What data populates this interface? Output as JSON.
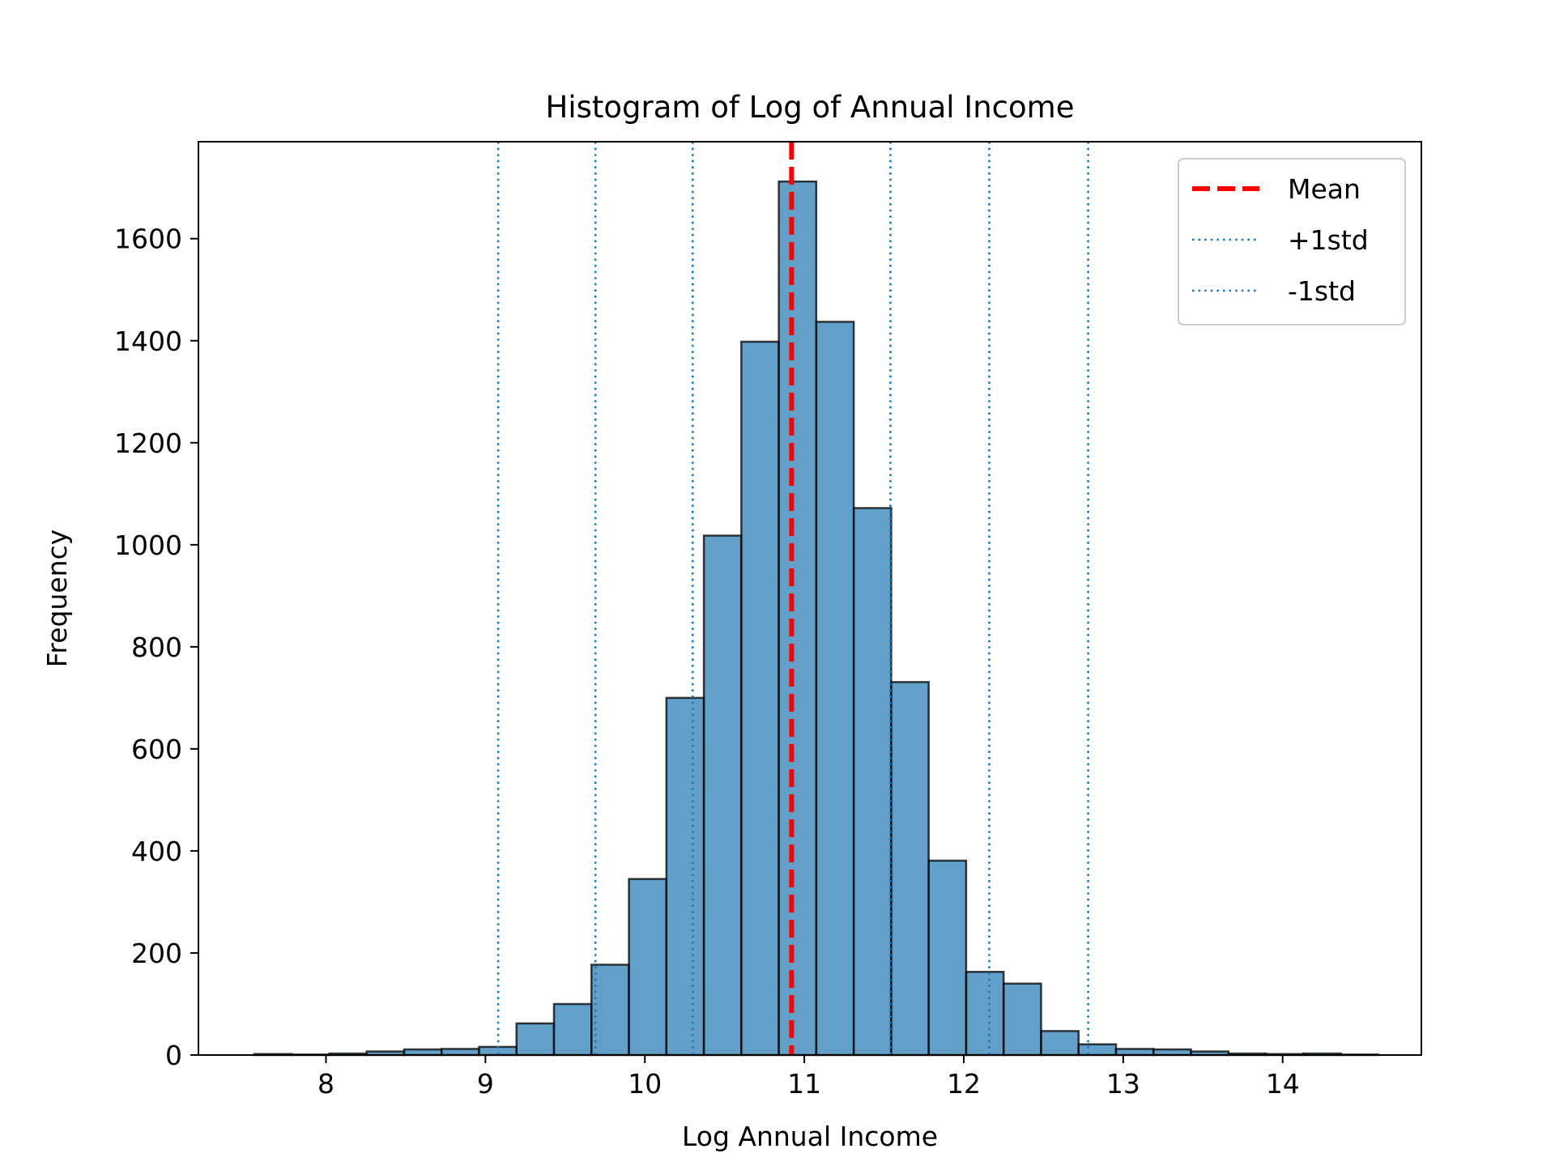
{
  "chart_data": {
    "type": "bar",
    "title": "Histogram of Log of Annual Income",
    "xlabel": "Log Annual Income",
    "ylabel": "Frequency",
    "xlim": [
      7.2,
      14.87
    ],
    "ylim": [
      0,
      1790
    ],
    "xticks": [
      8,
      9,
      10,
      11,
      12,
      13,
      14
    ],
    "yticks": [
      0,
      200,
      400,
      600,
      800,
      1000,
      1200,
      1400,
      1600
    ],
    "bin_edges": [
      7.55,
      7.785,
      8.02,
      8.255,
      8.49,
      8.725,
      8.96,
      9.195,
      9.43,
      9.665,
      9.9,
      10.135,
      10.37,
      10.605,
      10.84,
      11.075,
      11.31,
      11.545,
      11.78,
      12.015,
      12.25,
      12.485,
      12.72,
      12.955,
      13.19,
      13.425,
      13.66,
      13.895,
      14.13,
      14.365,
      14.6
    ],
    "values": [
      2,
      1,
      3,
      7,
      11,
      12,
      16,
      62,
      100,
      177,
      345,
      700,
      1018,
      1398,
      1712,
      1437,
      1072,
      731,
      381,
      163,
      140,
      47,
      21,
      12,
      11,
      7,
      3,
      2,
      3,
      1
    ],
    "vlines": [
      {
        "name": "Mean",
        "x": 10.92,
        "style": "dashed",
        "color": "#ff0000"
      },
      {
        "name": "+1std",
        "x": 11.54,
        "style": "dotted",
        "color": "#1f77b4"
      },
      {
        "name": "+1std",
        "x": 12.16,
        "style": "dotted",
        "color": "#1f77b4"
      },
      {
        "name": "+1std",
        "x": 12.78,
        "style": "dotted",
        "color": "#1f77b4"
      },
      {
        "name": "-1std",
        "x": 10.3,
        "style": "dotted",
        "color": "#1f77b4"
      },
      {
        "name": "-1std",
        "x": 9.69,
        "style": "dotted",
        "color": "#1f77b4"
      },
      {
        "name": "-1std",
        "x": 9.08,
        "style": "dotted",
        "color": "#1f77b4"
      }
    ],
    "legend": {
      "position": "upper right",
      "entries": [
        {
          "label": "Mean",
          "style": "dashed",
          "color": "#ff0000"
        },
        {
          "label": "+1std",
          "style": "dotted",
          "color": "#1f77b4"
        },
        {
          "label": "-1std",
          "style": "dotted",
          "color": "#1f77b4"
        }
      ]
    },
    "bar_color": "#1f77b4",
    "bar_alpha": 0.7,
    "bar_edge_color": "#000000",
    "grid": false
  }
}
